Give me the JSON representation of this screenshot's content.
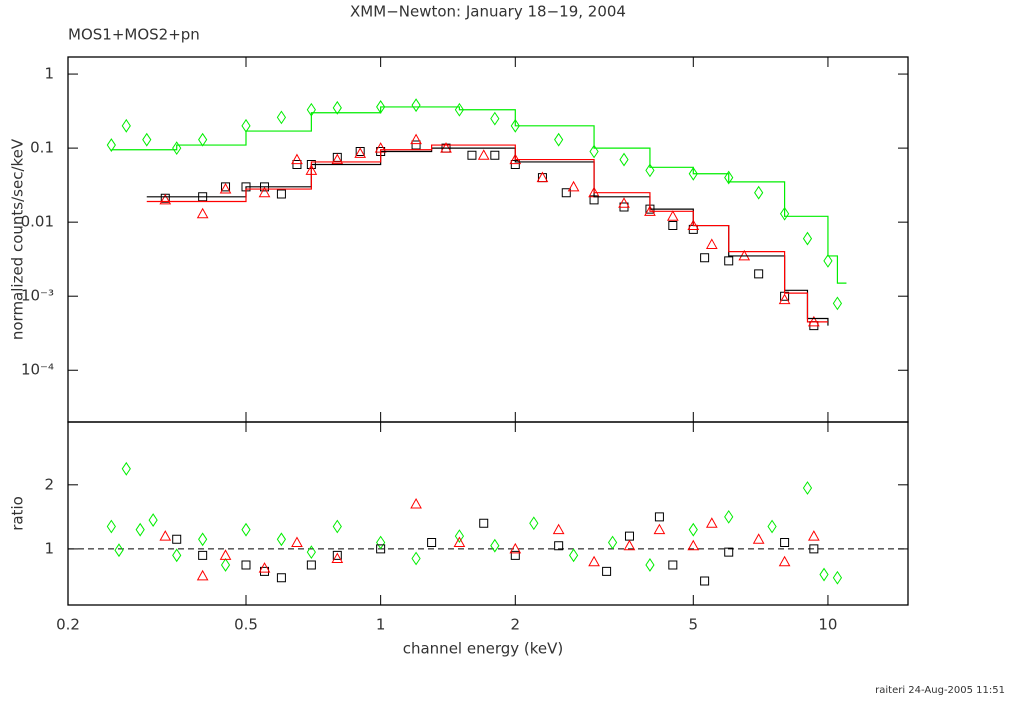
{
  "chart_data": [
    {
      "type": "scatter",
      "title": "XMM−Newton: January 18−19, 2004",
      "subtitle": "MOS1+MOS2+pn",
      "ylabel": "normalized counts/sec/keV",
      "xscale": "log",
      "yscale": "log",
      "xlim": [
        0.2,
        15.1
      ],
      "ylim": [
        2e-05,
        1.7
      ],
      "xticks": [
        0.2,
        0.5,
        1,
        2,
        5,
        10
      ],
      "yticks": [
        1,
        0.1,
        0.01,
        {
          "value": 0.001,
          "label": "10⁻³"
        },
        {
          "value": 0.0001,
          "label": "10⁻⁴"
        }
      ],
      "series": [
        {
          "color": "#00ee00",
          "marker": "diamond",
          "x": [
            0.25,
            0.27,
            0.3,
            0.35,
            0.4,
            0.5,
            0.6,
            0.7,
            0.8,
            1.0,
            1.2,
            1.5,
            1.8,
            2.0,
            2.5,
            3.0,
            3.5,
            4.0,
            5.0,
            6.0,
            7.0,
            8.0,
            9.0,
            10.0,
            10.5
          ],
          "values": [
            0.11,
            0.2,
            0.13,
            0.1,
            0.13,
            0.2,
            0.26,
            0.33,
            0.35,
            0.36,
            0.38,
            0.33,
            0.25,
            0.2,
            0.13,
            0.09,
            0.07,
            0.05,
            0.045,
            0.04,
            0.025,
            0.013,
            0.006,
            0.003,
            0.0008
          ]
        },
        {
          "color": "#000000",
          "marker": "square",
          "x": [
            0.33,
            0.4,
            0.45,
            0.5,
            0.55,
            0.6,
            0.65,
            0.7,
            0.8,
            0.9,
            1.0,
            1.2,
            1.4,
            1.6,
            1.8,
            2.0,
            2.3,
            2.6,
            3.0,
            3.5,
            4.0,
            4.5,
            5.0,
            5.3,
            6.0,
            7.0,
            8.0,
            9.3
          ],
          "values": [
            0.021,
            0.022,
            0.03,
            0.03,
            0.03,
            0.024,
            0.06,
            0.06,
            0.075,
            0.09,
            0.09,
            0.11,
            0.1,
            0.08,
            0.08,
            0.06,
            0.04,
            0.025,
            0.02,
            0.016,
            0.015,
            0.009,
            0.008,
            0.0033,
            0.003,
            0.002,
            0.001,
            0.0004
          ]
        },
        {
          "color": "#ff0000",
          "marker": "triangle",
          "x": [
            0.33,
            0.4,
            0.45,
            0.55,
            0.65,
            0.7,
            0.8,
            0.9,
            1.0,
            1.2,
            1.4,
            1.7,
            2.0,
            2.3,
            2.7,
            3.0,
            3.5,
            4.0,
            4.5,
            5.0,
            5.5,
            6.5,
            8.0,
            9.3
          ],
          "values": [
            0.02,
            0.013,
            0.028,
            0.025,
            0.07,
            0.05,
            0.07,
            0.085,
            0.1,
            0.13,
            0.1,
            0.08,
            0.07,
            0.04,
            0.03,
            0.025,
            0.018,
            0.014,
            0.012,
            0.009,
            0.005,
            0.0035,
            0.0009,
            0.00045
          ]
        },
        {
          "color": "#00ee00",
          "line": "step",
          "x": [
            0.25,
            0.35,
            0.5,
            0.7,
            1.0,
            1.5,
            2.0,
            3.0,
            4.0,
            5.0,
            6.0,
            8.0,
            10.0,
            10.5,
            11.0
          ],
          "values": [
            0.095,
            0.11,
            0.17,
            0.3,
            0.36,
            0.33,
            0.2,
            0.1,
            0.055,
            0.045,
            0.035,
            0.012,
            0.0035,
            0.0015,
            0.0015
          ]
        },
        {
          "color": "#000000",
          "line": "step",
          "x": [
            0.3,
            0.5,
            0.7,
            1.0,
            1.3,
            2.0,
            3.0,
            4.0,
            5.0,
            6.0,
            8.0,
            9.0,
            10.0
          ],
          "values": [
            0.022,
            0.03,
            0.06,
            0.09,
            0.1,
            0.065,
            0.022,
            0.015,
            0.009,
            0.0035,
            0.0012,
            0.0005,
            0.0004
          ]
        },
        {
          "color": "#ff0000",
          "line": "step",
          "x": [
            0.3,
            0.5,
            0.7,
            1.0,
            1.3,
            2.0,
            3.0,
            4.0,
            5.0,
            6.0,
            8.0,
            9.0,
            10.0
          ],
          "values": [
            0.019,
            0.028,
            0.065,
            0.095,
            0.11,
            0.07,
            0.025,
            0.014,
            0.009,
            0.004,
            0.0011,
            0.00045,
            0.00045
          ]
        }
      ]
    },
    {
      "type": "scatter",
      "ylabel": "ratio",
      "xlabel": "channel energy (keV)",
      "xscale": "log",
      "xlim": [
        0.2,
        15.1
      ],
      "ylim": [
        0.125,
        2.98
      ],
      "hline": 1,
      "xticks": [
        0.2,
        0.5,
        1,
        2,
        5,
        10
      ],
      "yticks": [
        1,
        2
      ],
      "series": [
        {
          "color": "#00ee00",
          "marker": "diamond",
          "x": [
            0.25,
            0.26,
            0.27,
            0.29,
            0.31,
            0.35,
            0.4,
            0.45,
            0.5,
            0.6,
            0.7,
            0.8,
            1.0,
            1.2,
            1.5,
            1.8,
            2.2,
            2.7,
            3.3,
            4.0,
            5.0,
            6.0,
            7.5,
            9.0,
            9.8,
            10.5
          ],
          "values": [
            1.35,
            0.98,
            2.25,
            1.3,
            1.45,
            0.9,
            1.15,
            0.75,
            1.3,
            1.15,
            0.95,
            1.35,
            1.1,
            0.85,
            1.2,
            1.05,
            1.4,
            0.9,
            1.1,
            0.75,
            1.3,
            1.5,
            1.35,
            1.95,
            0.6,
            0.55
          ]
        },
        {
          "color": "#000000",
          "marker": "square",
          "x": [
            0.35,
            0.4,
            0.5,
            0.55,
            0.6,
            0.7,
            0.8,
            1.0,
            1.3,
            1.7,
            2.0,
            2.5,
            3.2,
            3.6,
            4.2,
            4.5,
            5.3,
            6.0,
            8.0,
            9.3
          ],
          "values": [
            1.15,
            0.9,
            0.75,
            0.65,
            0.55,
            0.75,
            0.9,
            1.0,
            1.1,
            1.4,
            0.9,
            1.05,
            0.65,
            1.2,
            1.5,
            0.75,
            0.5,
            0.95,
            1.1,
            1.0
          ]
        },
        {
          "color": "#ff0000",
          "marker": "triangle",
          "x": [
            0.33,
            0.4,
            0.45,
            0.55,
            0.65,
            0.8,
            1.2,
            1.5,
            2.0,
            2.5,
            3.0,
            3.6,
            4.2,
            5.0,
            5.5,
            7.0,
            8.0,
            9.3
          ],
          "values": [
            1.2,
            0.58,
            0.9,
            0.7,
            1.1,
            0.85,
            1.7,
            1.1,
            1.0,
            1.3,
            0.8,
            1.05,
            1.3,
            1.05,
            1.4,
            1.15,
            0.8,
            1.2
          ]
        }
      ]
    }
  ],
  "footer": "raiteri 24-Aug-2005 11:51"
}
